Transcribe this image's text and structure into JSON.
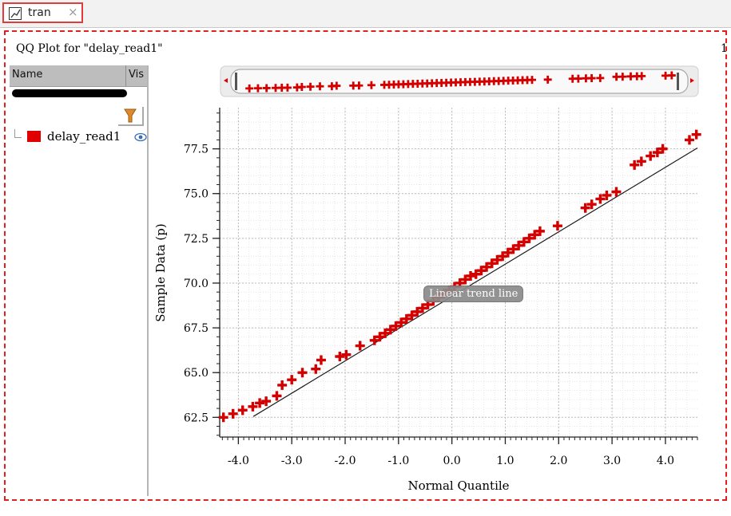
{
  "tab": {
    "label": "tran",
    "close": "×"
  },
  "plot_title": "QQ Plot for \"delay_read1\"",
  "page_indicator": "1",
  "tree": {
    "col_name": "Name",
    "col_vis": "Vis",
    "series": [
      {
        "label": "delay_read1",
        "color": "#e00000"
      }
    ]
  },
  "trend_badge": "Linear trend line",
  "icons": {
    "tab": "chart-icon",
    "filter": "filter-icon",
    "visibility": "eye-icon"
  },
  "chart_data": {
    "type": "scatter",
    "title": "",
    "xlabel": "Normal Quantile",
    "ylabel": "Sample Data (p)",
    "xlim": [
      -4.35,
      4.6
    ],
    "ylim": [
      61.4,
      79.8
    ],
    "xticks": [
      -4.0,
      -3.0,
      -2.0,
      -1.0,
      0.0,
      1.0,
      2.0,
      3.0,
      4.0
    ],
    "xtick_labels": [
      "-4.0",
      "-3.0",
      "-2.0",
      "-1.0",
      "0.0",
      "1.0",
      "2.0",
      "3.0",
      "4.0"
    ],
    "yticks": [
      62.5,
      65.0,
      67.5,
      70.0,
      72.5,
      75.0,
      77.5
    ],
    "ytick_labels": [
      "62.5",
      "65.0",
      "67.5",
      "70.0",
      "72.5",
      "75.0",
      "77.5"
    ],
    "grid": true,
    "marker_color": "#d40000",
    "series": [
      {
        "name": "delay_read1",
        "x": [
          -4.28,
          -4.1,
          -3.92,
          -3.73,
          -3.6,
          -3.48,
          -3.28,
          -3.18,
          -3.0,
          -2.8,
          -2.55,
          -2.45,
          -2.1,
          -1.98,
          -1.72,
          -1.45,
          -1.35,
          -1.25,
          -1.15,
          -1.05,
          -0.95,
          -0.85,
          -0.75,
          -0.65,
          -0.55,
          -0.45,
          -0.35,
          -0.25,
          -0.15,
          -0.05,
          0.05,
          0.15,
          0.25,
          0.35,
          0.45,
          0.55,
          0.65,
          0.75,
          0.85,
          0.95,
          1.05,
          1.15,
          1.25,
          1.35,
          1.45,
          1.55,
          1.65,
          1.98,
          2.5,
          2.62,
          2.78,
          2.9,
          3.08,
          3.42,
          3.55,
          3.72,
          3.85,
          3.95,
          4.45,
          4.58
        ],
        "y": [
          62.5,
          62.7,
          62.9,
          63.1,
          63.3,
          63.4,
          63.7,
          64.3,
          64.6,
          65.0,
          65.2,
          65.7,
          65.9,
          66.0,
          66.5,
          66.8,
          67.0,
          67.2,
          67.4,
          67.6,
          67.8,
          68.0,
          68.2,
          68.4,
          68.6,
          68.8,
          69.0,
          69.2,
          69.4,
          69.6,
          69.8,
          70.0,
          70.2,
          70.4,
          70.5,
          70.7,
          70.9,
          71.1,
          71.3,
          71.5,
          71.7,
          71.9,
          72.1,
          72.3,
          72.5,
          72.7,
          72.9,
          73.2,
          74.2,
          74.4,
          74.7,
          74.9,
          75.1,
          76.6,
          76.8,
          77.1,
          77.3,
          77.5,
          78.0,
          78.3
        ]
      }
    ],
    "trend_line": {
      "x": [
        -3.72,
        4.6
      ],
      "y": [
        62.55,
        77.55
      ]
    }
  }
}
